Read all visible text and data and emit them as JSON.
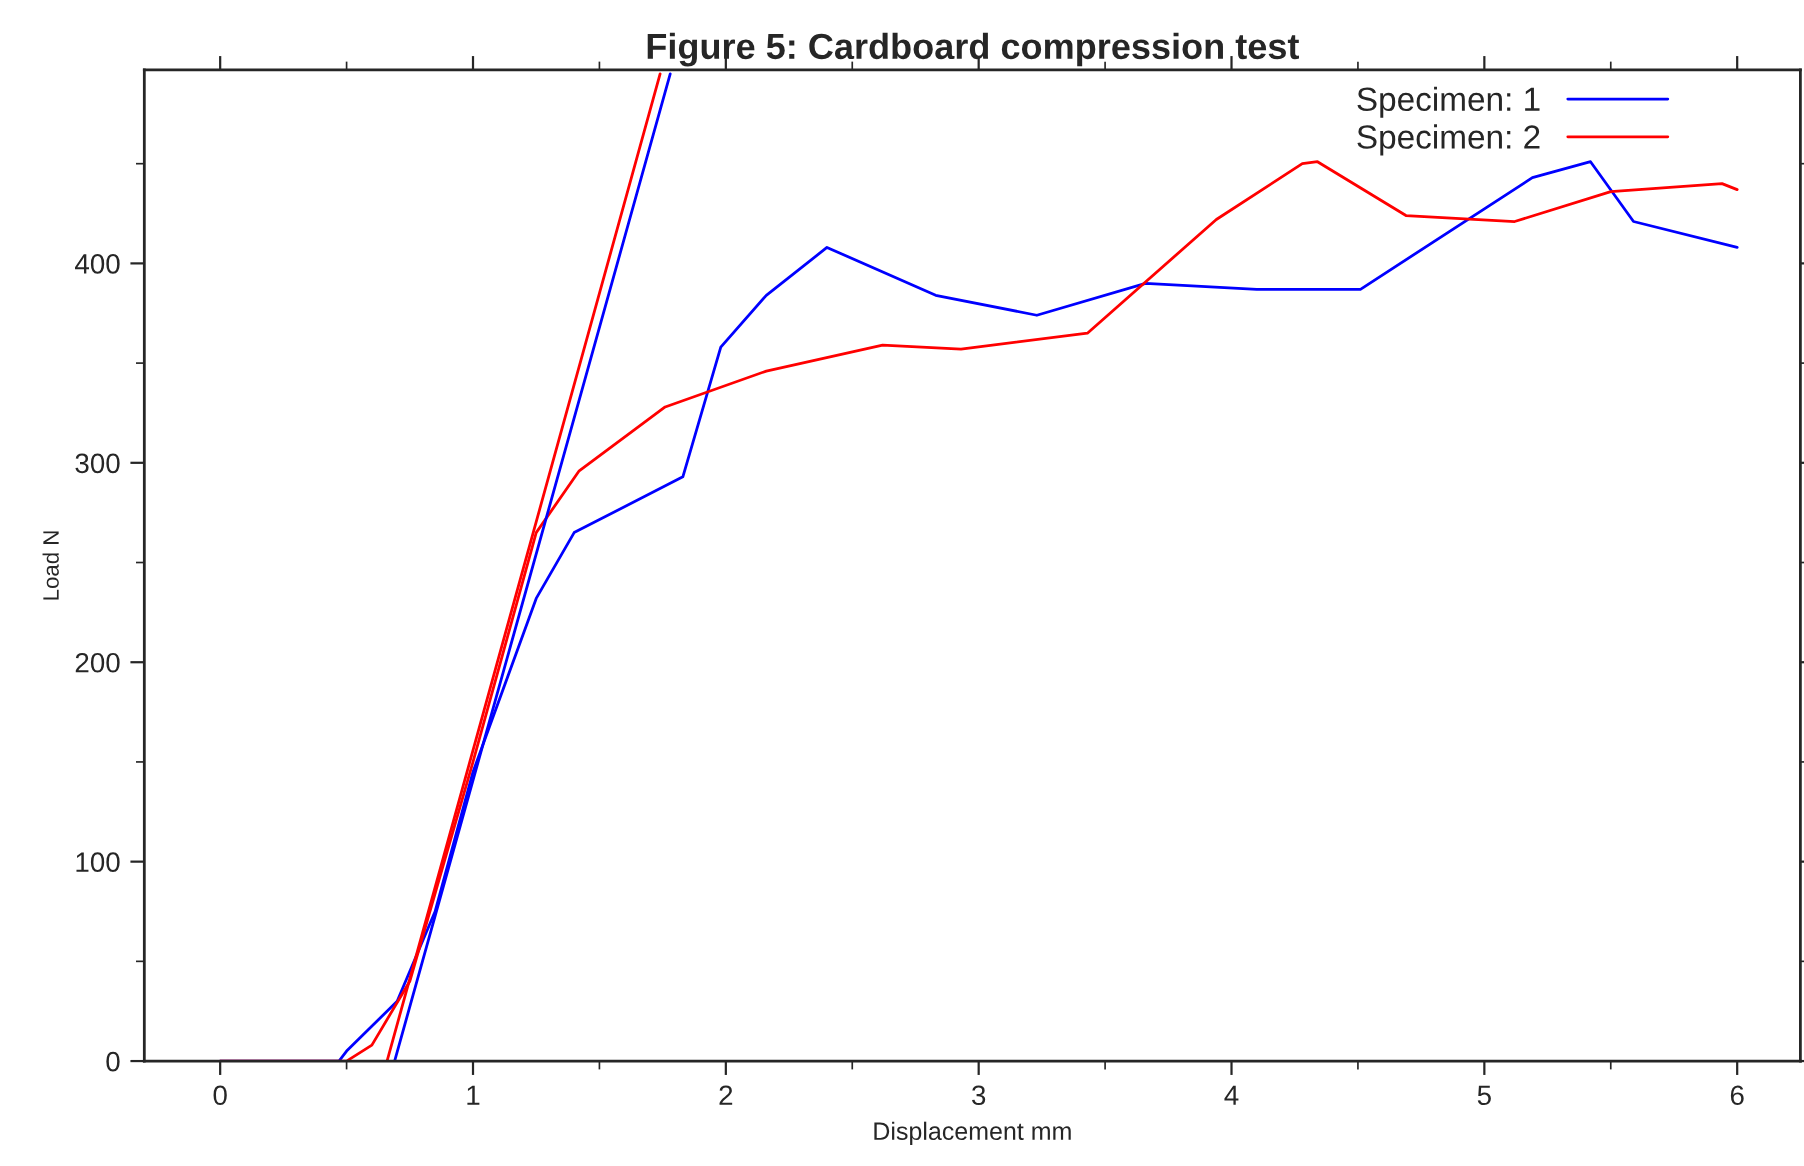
{
  "chart_data": {
    "type": "line",
    "title": "Figure 5: Cardboard compression test",
    "xlabel": "Displacement mm",
    "ylabel": "Load N",
    "xlim": [
      -0.3,
      6.25
    ],
    "ylim": [
      0,
      497
    ],
    "xticks": [
      0,
      1,
      2,
      3,
      4,
      5,
      6
    ],
    "yticks": [
      0,
      100,
      200,
      300,
      400
    ],
    "grid": false,
    "legend": "top right",
    "series": [
      {
        "name": "Specimen: 1",
        "color": "#0000ff",
        "x": [
          0,
          0.47,
          0.5,
          0.7,
          0.85,
          1.0,
          1.25,
          1.4,
          1.83,
          1.98,
          2.16,
          2.4,
          2.83,
          3.23,
          3.66,
          4.1,
          4.51,
          5.19,
          5.42,
          5.59,
          6.0
        ],
        "values": [
          0,
          0,
          5,
          30,
          75,
          145,
          232,
          265,
          293,
          358,
          384,
          408,
          384,
          374,
          390,
          387,
          387,
          443,
          451,
          421,
          408
        ]
      },
      {
        "name": "Specimen: 2",
        "color": "#ff0000",
        "x": [
          0,
          0.5,
          0.6,
          0.75,
          1.0,
          1.25,
          1.42,
          1.76,
          2.16,
          2.62,
          2.93,
          3.43,
          3.94,
          4.28,
          4.34,
          4.69,
          5.12,
          5.5,
          5.94,
          6.0
        ],
        "values": [
          0,
          0,
          8,
          40,
          150,
          265,
          296,
          328,
          346,
          359,
          357,
          365,
          422,
          450,
          451,
          424,
          421,
          436,
          440,
          437
        ]
      },
      {
        "color": "#0000ff",
        "x": [
          0.69,
          1.78
        ],
        "values": [
          0,
          495
        ]
      },
      {
        "color": "#ff0000",
        "x": [
          0.66,
          1.74
        ],
        "values": [
          0,
          495
        ]
      }
    ]
  }
}
